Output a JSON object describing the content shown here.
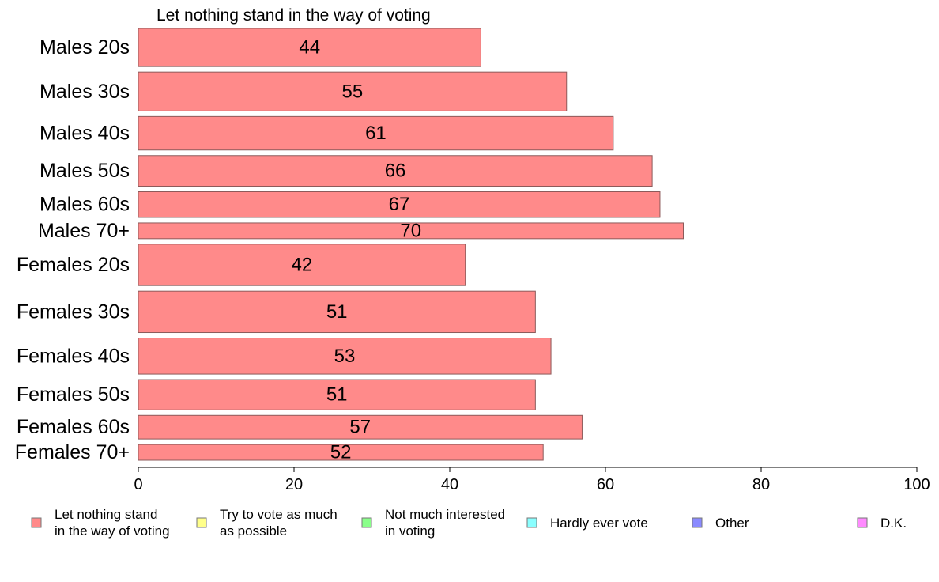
{
  "chart_data": {
    "type": "bar",
    "orientation": "horizontal",
    "title": "Let nothing stand in the way of voting",
    "categories": [
      "Males 20s",
      "Males 30s",
      "Males 40s",
      "Males 50s",
      "Males 60s",
      "Males 70+",
      "Females 20s",
      "Females 30s",
      "Females 40s",
      "Females 50s",
      "Females 60s",
      "Females 70+"
    ],
    "series": [
      {
        "name": "Let nothing stand in the way of voting",
        "color": "#ff8a8a",
        "values": [
          44,
          55,
          61,
          66,
          67,
          70,
          42,
          51,
          53,
          51,
          57,
          52
        ]
      }
    ],
    "data_labels": [
      "44",
      "55",
      "61",
      "66",
      "67",
      "70",
      "42",
      "51",
      "53",
      "51",
      "57",
      "52"
    ],
    "bar_weights": [
      0.92,
      0.94,
      0.81,
      0.74,
      0.62,
      0.38,
      1.0,
      1.0,
      0.87,
      0.73,
      0.57,
      0.38
    ],
    "xlim": [
      0,
      100
    ],
    "xticks": [
      0,
      20,
      40,
      60,
      80,
      100
    ],
    "xtick_labels": [
      "0",
      "20",
      "40",
      "60",
      "80",
      "100"
    ],
    "grid": false,
    "legend": {
      "placement": "bottom",
      "items": [
        {
          "lines": [
            "Let nothing stand",
            "in the way of voting"
          ],
          "color": "#ff8a8a"
        },
        {
          "lines": [
            "Try to vote as much",
            "as possible"
          ],
          "color": "#ffff8a"
        },
        {
          "lines": [
            "Not much interested",
            "in voting"
          ],
          "color": "#8aff8a"
        },
        {
          "lines": [
            "Hardly ever vote"
          ],
          "color": "#8affff"
        },
        {
          "lines": [
            "Other"
          ],
          "color": "#8a8aff"
        },
        {
          "lines": [
            "D.K."
          ],
          "color": "#ff8aff"
        }
      ]
    }
  }
}
